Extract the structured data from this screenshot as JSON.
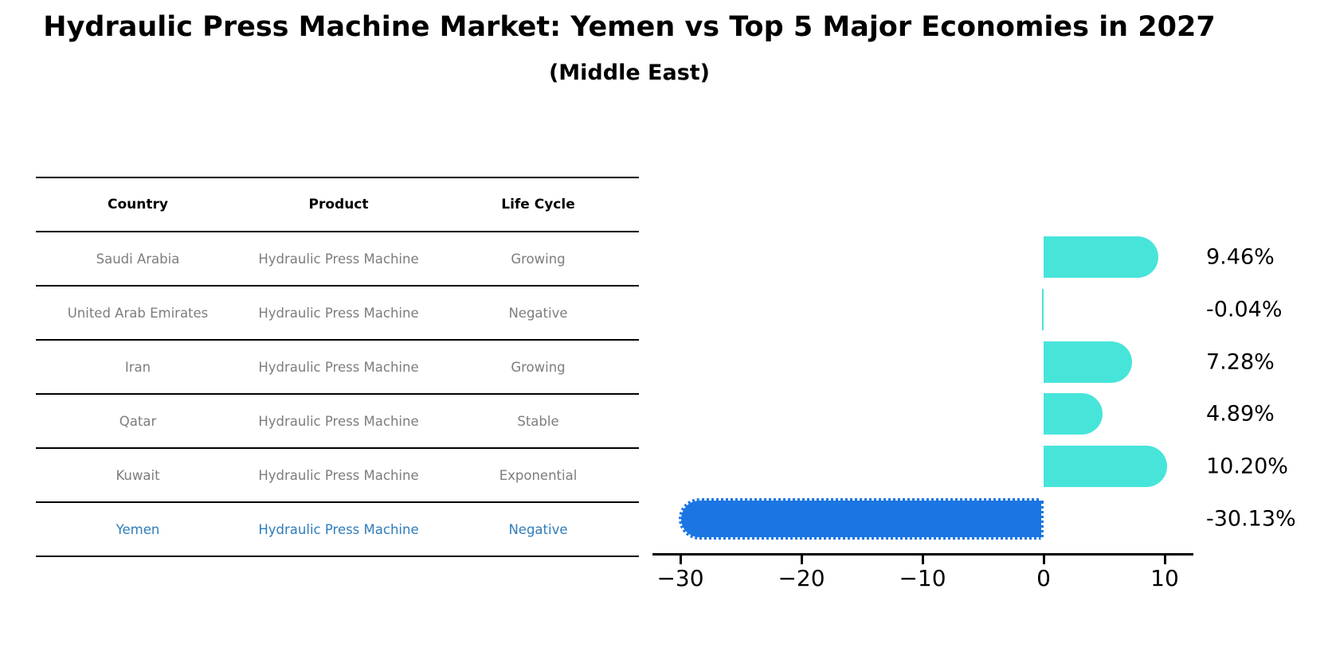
{
  "header": {
    "title": "Hydraulic Press Machine Market: Yemen vs Top 5 Major Economies in 2027",
    "subtitle": "(Middle East)"
  },
  "table": {
    "headers": [
      "Country",
      "Product",
      "Life Cycle"
    ],
    "rows": [
      {
        "country": "Saudi Arabia",
        "product": "Hydraulic Press Machine",
        "life_cycle": "Growing",
        "highlight": false
      },
      {
        "country": "United Arab Emirates",
        "product": "Hydraulic Press Machine",
        "life_cycle": "Negative",
        "highlight": false
      },
      {
        "country": "Iran",
        "product": "Hydraulic Press Machine",
        "life_cycle": "Growing",
        "highlight": false
      },
      {
        "country": "Qatar",
        "product": "Hydraulic Press Machine",
        "life_cycle": "Stable",
        "highlight": false
      },
      {
        "country": "Kuwait",
        "product": "Hydraulic Press Machine",
        "life_cycle": "Exponential",
        "highlight": false
      },
      {
        "country": "Yemen",
        "product": "Hydraulic Press Machine",
        "life_cycle": "Negative",
        "highlight": true
      }
    ]
  },
  "colors": {
    "bar_positive": "#47e4da",
    "bar_negative_highlight": "#1b76e3",
    "highlight_border": "#ffffff",
    "highlight_text": "#2e7cba",
    "row_text": "#7d7d7d",
    "axis": "#000000"
  },
  "chart_data": {
    "type": "bar",
    "orientation": "horizontal",
    "title": "Hydraulic Press Machine Market: Yemen vs Top 5 Major Economies in 2027",
    "subtitle": "(Middle East)",
    "categories": [
      "Saudi Arabia",
      "United Arab Emirates",
      "Iran",
      "Qatar",
      "Kuwait",
      "Yemen"
    ],
    "values": [
      9.46,
      -0.04,
      7.28,
      4.89,
      10.2,
      -30.13
    ],
    "value_labels": [
      "9.46%",
      "-0.04%",
      "7.28%",
      "4.89%",
      "10.20%",
      "-30.13%"
    ],
    "bar_colors": [
      "#47e4da",
      "#47e4da",
      "#47e4da",
      "#47e4da",
      "#47e4da",
      "#1b76e3"
    ],
    "highlight_index": 5,
    "xlabel": "",
    "ylabel": "",
    "xlim": [
      -32.3,
      12.4
    ],
    "x_ticks": [
      -30,
      -20,
      -10,
      0,
      10
    ],
    "x_tick_labels": [
      "−30",
      "−20",
      "−10",
      "0",
      "10"
    ],
    "grid": false,
    "legend": false
  }
}
